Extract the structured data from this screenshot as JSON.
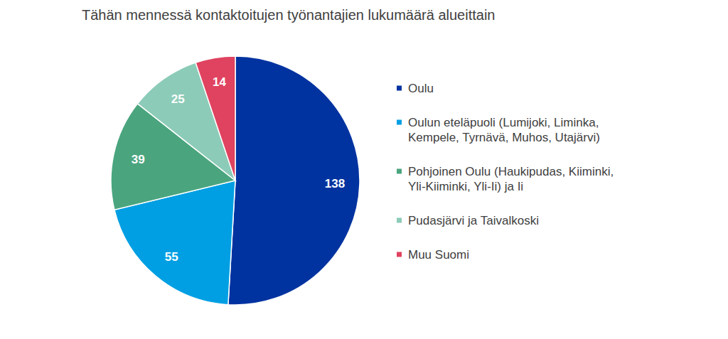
{
  "chart_data": {
    "type": "pie",
    "title": "Tähän mennessä kontaktoitujen työnantajien lukumäärä alueittain",
    "categories": [
      "Oulu",
      "Oulun eteläpuoli (Lumijoki, Liminka, Kempele, Tyrnävä, Muhos, Utajärvi)",
      "Pohjoinen Oulu (Haukipudas, Kiiminki, Yli-Kiiminki, Yli-Ii) ja Ii",
      "Pudasjärvi ja Taivalkoski",
      "Muu Suomi"
    ],
    "values": [
      138,
      55,
      39,
      25,
      14
    ],
    "colors": [
      "#0033a0",
      "#009fe3",
      "#4aa57e",
      "#8ccbb8",
      "#e0435f"
    ],
    "data_labels": true,
    "legend": "right"
  }
}
